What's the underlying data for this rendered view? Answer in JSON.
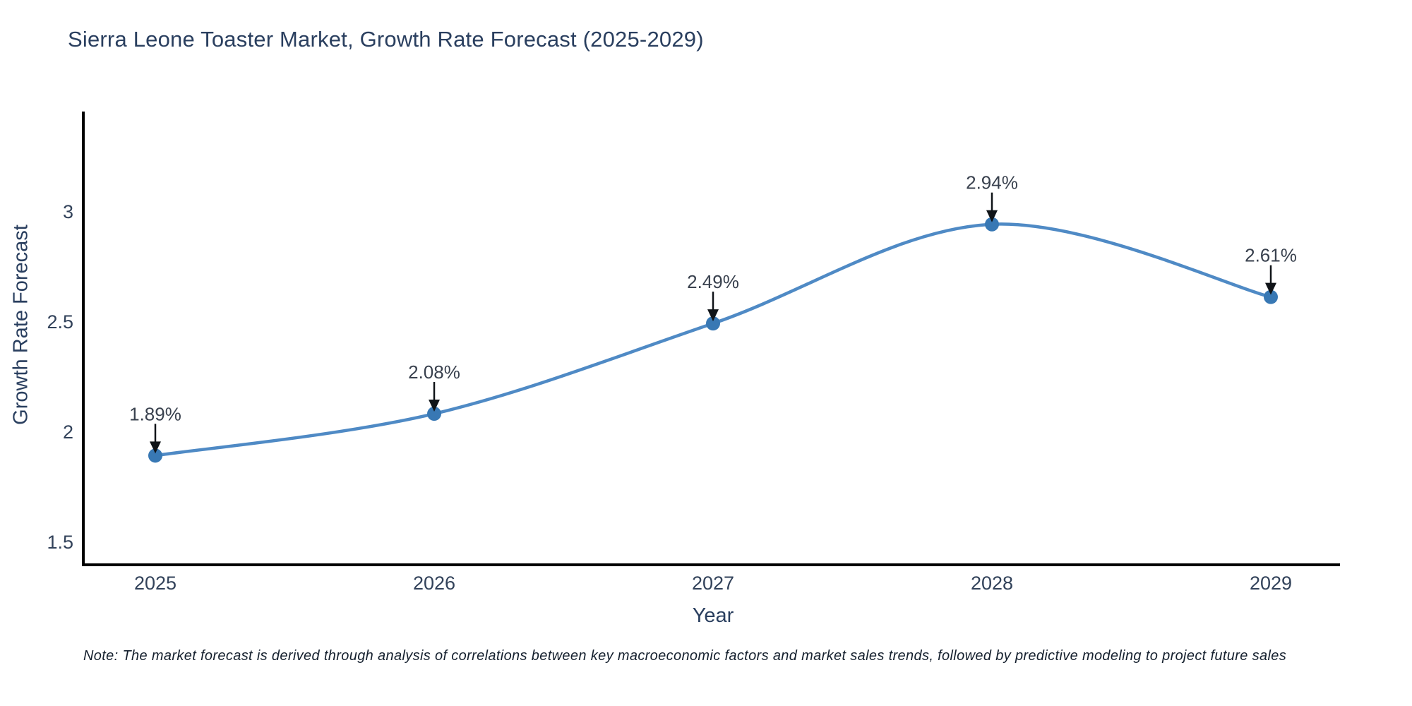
{
  "title": "Sierra Leone Toaster Market, Growth Rate Forecast (2025-2029)",
  "note": "Note: The market forecast is derived through analysis of correlations between key macroeconomic factors and market sales trends, followed by predictive modeling to project future sales",
  "chart_data": {
    "type": "line",
    "title": "Sierra Leone Toaster Market, Growth Rate Forecast (2025-2029)",
    "xlabel": "Year",
    "ylabel": "Growth Rate Forecast",
    "x": [
      2025,
      2026,
      2027,
      2028,
      2029
    ],
    "x_tick_labels": [
      "2025",
      "2026",
      "2027",
      "2028",
      "2029"
    ],
    "series": [
      {
        "name": "Growth Rate Forecast",
        "values": [
          1.89,
          2.08,
          2.49,
          2.94,
          2.61
        ],
        "point_labels": [
          "1.89%",
          "2.08%",
          "2.49%",
          "2.94%",
          "2.61%"
        ]
      }
    ],
    "y_ticks": [
      1.5,
      2,
      2.5,
      3
    ],
    "y_tick_labels": [
      "1.5",
      "2",
      "2.5",
      "3"
    ],
    "ylim": [
      1.39,
      3.45
    ],
    "grid": false,
    "legend": false,
    "line_shape": "spline",
    "annotation_arrows": true,
    "colors": {
      "line": "#4f8ac5",
      "marker": "#3878b4",
      "arrow": "#101418",
      "tick_text": "#32425a",
      "annotation_text": "#39414e",
      "spine": "#000000",
      "background": "#ffffff"
    }
  }
}
